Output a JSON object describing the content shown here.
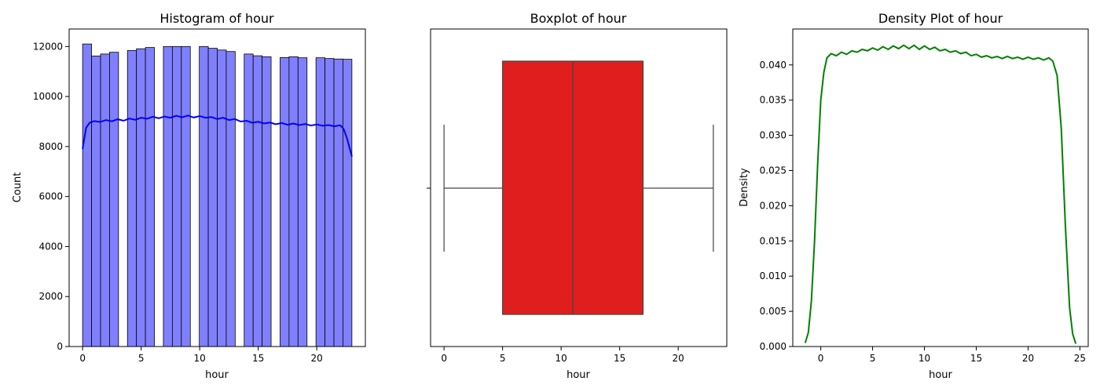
{
  "chart_data": [
    {
      "type": "bar",
      "title": "Histogram of hour",
      "xlabel": "hour",
      "ylabel": "Count",
      "xlim": [
        -1.15,
        24.15
      ],
      "ylim": [
        0,
        12700
      ],
      "xticks": [
        0,
        5,
        10,
        15,
        20
      ],
      "yticks": [
        0,
        2000,
        4000,
        6000,
        8000,
        10000,
        12000
      ],
      "grid": false,
      "bar_color": "#8080ff",
      "kde_color": "#0000ff",
      "bins": [
        {
          "x0": 0.0,
          "x1": 0.767,
          "value": 12100
        },
        {
          "x0": 0.767,
          "x1": 1.533,
          "value": 11620
        },
        {
          "x0": 1.533,
          "x1": 2.3,
          "value": 11700
        },
        {
          "x0": 2.3,
          "x1": 3.067,
          "value": 11770
        },
        {
          "x0": 3.833,
          "x1": 4.6,
          "value": 11840
        },
        {
          "x0": 4.6,
          "x1": 5.367,
          "value": 11910
        },
        {
          "x0": 5.367,
          "x1": 6.133,
          "value": 11960
        },
        {
          "x0": 6.9,
          "x1": 7.667,
          "value": 12000
        },
        {
          "x0": 7.667,
          "x1": 8.433,
          "value": 12000
        },
        {
          "x0": 8.433,
          "x1": 9.2,
          "value": 12000
        },
        {
          "x0": 9.967,
          "x1": 10.733,
          "value": 12000
        },
        {
          "x0": 10.733,
          "x1": 11.5,
          "value": 11930
        },
        {
          "x0": 11.5,
          "x1": 12.267,
          "value": 11860
        },
        {
          "x0": 12.267,
          "x1": 13.033,
          "value": 11800
        },
        {
          "x0": 13.8,
          "x1": 14.567,
          "value": 11700
        },
        {
          "x0": 14.567,
          "x1": 15.333,
          "value": 11630
        },
        {
          "x0": 15.333,
          "x1": 16.1,
          "value": 11590
        },
        {
          "x0": 16.867,
          "x1": 17.633,
          "value": 11560
        },
        {
          "x0": 17.633,
          "x1": 18.4,
          "value": 11590
        },
        {
          "x0": 18.4,
          "x1": 19.167,
          "value": 11550
        },
        {
          "x0": 19.933,
          "x1": 20.7,
          "value": 11550
        },
        {
          "x0": 20.7,
          "x1": 21.467,
          "value": 11520
        },
        {
          "x0": 21.467,
          "x1": 22.233,
          "value": 11500
        },
        {
          "x0": 22.233,
          "x1": 23.0,
          "value": 11490
        }
      ],
      "kde": {
        "x": [
          0,
          0.3,
          0.6,
          1,
          1.5,
          2,
          2.5,
          3,
          3.5,
          4,
          4.5,
          5,
          5.5,
          6,
          6.5,
          7,
          7.5,
          8,
          8.5,
          9,
          9.5,
          10,
          10.5,
          11,
          11.5,
          12,
          12.5,
          13,
          13.5,
          14,
          14.5,
          15,
          15.5,
          16,
          16.5,
          17,
          17.5,
          18,
          18.5,
          19,
          19.5,
          20,
          20.5,
          21,
          21.5,
          22,
          22.3,
          22.6,
          23
        ],
        "y": [
          7900,
          8750,
          8950,
          9020,
          8980,
          9060,
          9010,
          9090,
          9030,
          9120,
          9070,
          9150,
          9110,
          9190,
          9130,
          9200,
          9150,
          9230,
          9170,
          9240,
          9160,
          9220,
          9150,
          9180,
          9100,
          9150,
          9060,
          9100,
          9000,
          9030,
          8950,
          8990,
          8920,
          8960,
          8890,
          8940,
          8870,
          8920,
          8860,
          8900,
          8840,
          8880,
          8830,
          8860,
          8810,
          8850,
          8700,
          8300,
          7600
        ]
      }
    },
    {
      "type": "box",
      "title": "Boxplot of hour",
      "xlabel": "hour",
      "xlim": [
        -1.15,
        24.15
      ],
      "xticks": [
        0,
        5,
        10,
        15,
        20
      ],
      "grid": false,
      "box_color": "#e01e1e",
      "line_color": "#444444",
      "stats": {
        "min": 0,
        "q1": 5,
        "median": 11,
        "q3": 17,
        "max": 23
      }
    },
    {
      "type": "line",
      "title": "Density Plot of hour",
      "xlabel": "hour",
      "ylabel": "Density",
      "xlim": [
        -2.7,
        25.8
      ],
      "ylim": [
        0,
        0.0451
      ],
      "xticks": [
        0,
        5,
        10,
        15,
        20,
        25
      ],
      "yticks": [
        0.0,
        0.005,
        0.01,
        0.015,
        0.02,
        0.025,
        0.03,
        0.035,
        0.04
      ],
      "ytick_labels": [
        "0.000",
        "0.005",
        "0.010",
        "0.015",
        "0.020",
        "0.025",
        "0.030",
        "0.035",
        "0.040"
      ],
      "grid": false,
      "line_color": "#008000",
      "series": [
        {
          "x": [
            -1.5,
            -1.2,
            -0.9,
            -0.6,
            -0.3,
            0,
            0.3,
            0.6,
            1,
            1.5,
            2,
            2.5,
            3,
            3.5,
            4,
            4.5,
            5,
            5.5,
            6,
            6.5,
            7,
            7.5,
            8,
            8.5,
            9,
            9.5,
            10,
            10.5,
            11,
            11.5,
            12,
            12.5,
            13,
            13.5,
            14,
            14.5,
            15,
            15.5,
            16,
            16.5,
            17,
            17.5,
            18,
            18.5,
            19,
            19.5,
            20,
            20.5,
            21,
            21.5,
            22,
            22.4,
            22.8,
            23.2,
            23.6,
            24,
            24.3,
            24.6
          ],
          "y": [
            0.0005,
            0.002,
            0.0065,
            0.015,
            0.026,
            0.035,
            0.039,
            0.041,
            0.0416,
            0.0413,
            0.0418,
            0.0415,
            0.042,
            0.0418,
            0.0422,
            0.042,
            0.0424,
            0.0421,
            0.0426,
            0.0422,
            0.0427,
            0.0423,
            0.0428,
            0.0423,
            0.0428,
            0.0422,
            0.0427,
            0.0422,
            0.0425,
            0.042,
            0.0422,
            0.0418,
            0.042,
            0.0416,
            0.0418,
            0.0413,
            0.0415,
            0.0411,
            0.0413,
            0.041,
            0.0412,
            0.0409,
            0.0412,
            0.0409,
            0.0411,
            0.0408,
            0.0411,
            0.0408,
            0.041,
            0.0407,
            0.041,
            0.0405,
            0.0385,
            0.031,
            0.017,
            0.0055,
            0.0018,
            0.0004
          ]
        }
      ]
    }
  ]
}
